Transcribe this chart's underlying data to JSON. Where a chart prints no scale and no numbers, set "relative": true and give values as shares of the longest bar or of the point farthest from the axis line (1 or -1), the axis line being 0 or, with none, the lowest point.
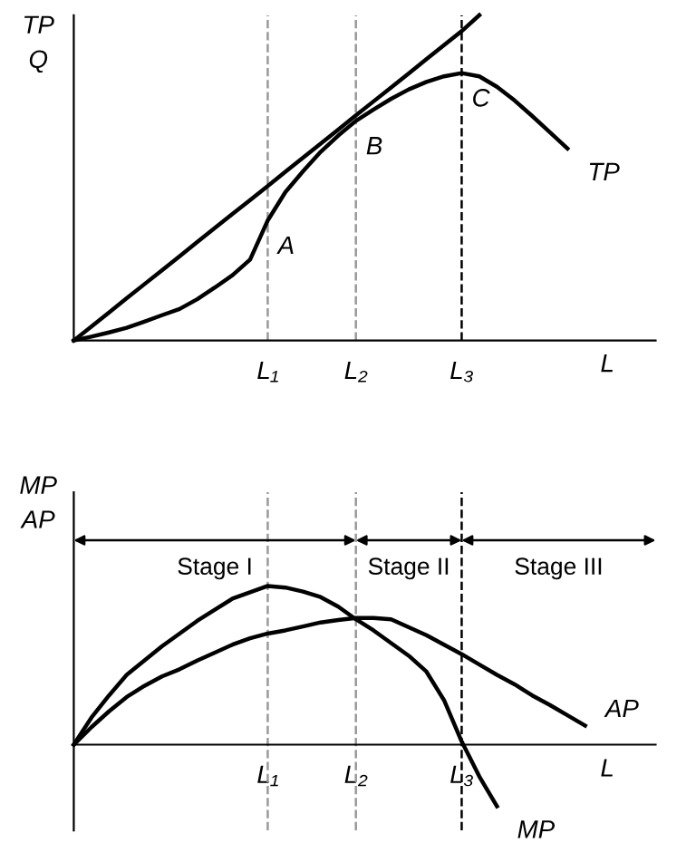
{
  "chart_data": [
    {
      "type": "line",
      "relative": true,
      "ylabel": "TP\nQ",
      "xlabel": "L",
      "categories": [
        null,
        null,
        null,
        null,
        null,
        null,
        null,
        null,
        null,
        null,
        null,
        "L₁",
        null,
        null,
        null,
        null,
        "L₂",
        null,
        null,
        null,
        null,
        null,
        "L₃",
        null,
        null,
        null,
        null,
        null,
        null,
        null,
        null,
        null,
        null,
        null
      ],
      "series": [
        {
          "name": "TP",
          "color": "#000000",
          "values": [
            0,
            0.012,
            0.025,
            0.039,
            0.058,
            0.078,
            0.097,
            0.127,
            0.163,
            0.201,
            0.249,
            0.369,
            0.456,
            0.52,
            0.58,
            0.63,
            0.675,
            0.71,
            0.743,
            0.772,
            0.795,
            0.812,
            0.822,
            0.812,
            0.78,
            0.738,
            0.69,
            0.64,
            0.59,
            null,
            null,
            null,
            null,
            null
          ]
        },
        {
          "color": "#000000",
          "values": [
            0,
            0.043,
            0.086,
            0.13,
            0.173,
            0.216,
            0.259,
            0.303,
            0.346,
            0.389,
            0.432,
            0.475,
            0.519,
            0.562,
            0.605,
            0.648,
            0.692,
            0.735,
            0.778,
            0.821,
            0.865,
            0.908,
            0.951,
            1,
            null,
            null,
            null,
            null,
            null,
            null,
            null,
            null,
            null,
            null
          ]
        }
      ],
      "annotations": [
        {
          "text": "A",
          "x": "L₁",
          "y": 0.369
        },
        {
          "text": "B",
          "x": "L₂",
          "y": 0.675
        },
        {
          "text": "C",
          "x": "L₃",
          "y": 0.822
        }
      ],
      "ref_lines": [
        {
          "axis": "x",
          "value": "L₁",
          "color": "#999999",
          "line_style": "dashed"
        },
        {
          "axis": "x",
          "value": "L₂",
          "color": "#999999",
          "line_style": "dashed"
        },
        {
          "axis": "x",
          "value": "L₃",
          "color": "#000000",
          "line_style": "dashed"
        }
      ],
      "marker": "none",
      "line_style": "solid"
    },
    {
      "type": "line",
      "relative": true,
      "ylabel": "MP\nAP",
      "xlabel": "L",
      "categories": [
        null,
        null,
        null,
        null,
        null,
        null,
        null,
        null,
        null,
        null,
        null,
        "L₁",
        null,
        null,
        null,
        null,
        "L₂",
        null,
        null,
        null,
        null,
        null,
        "L₃",
        null,
        null,
        null,
        null,
        null,
        null,
        null,
        null,
        null,
        null,
        null
      ],
      "series": [
        {
          "name": "MP",
          "color": "#000000",
          "values": [
            0,
            0.17,
            0.31,
            0.44,
            0.53,
            0.62,
            0.7,
            0.78,
            0.85,
            0.92,
            0.96,
            1,
            0.99,
            0.965,
            0.93,
            0.87,
            0.79,
            0.72,
            0.64,
            0.56,
            0.46,
            0.28,
            0.02,
            -0.2,
            -0.388,
            null,
            null,
            null,
            null,
            null,
            null,
            null,
            null,
            null
          ]
        },
        {
          "name": "AP",
          "color": "#000000",
          "values": [
            0,
            0.11,
            0.21,
            0.3,
            0.37,
            0.43,
            0.475,
            0.53,
            0.58,
            0.63,
            0.67,
            0.7,
            0.72,
            0.745,
            0.77,
            0.785,
            0.798,
            0.798,
            0.79,
            0.74,
            0.69,
            0.63,
            0.57,
            0.505,
            0.44,
            0.38,
            0.31,
            0.25,
            0.185,
            0.12,
            null,
            null,
            null,
            null
          ]
        }
      ],
      "annotations": [
        "Stage I",
        "Stage II",
        "Stage III"
      ],
      "ref_lines": [
        {
          "axis": "x",
          "value": "L₁",
          "color": "#999999",
          "line_style": "dashed"
        },
        {
          "axis": "x",
          "value": "L₂",
          "color": "#999999",
          "line_style": "dashed"
        },
        {
          "axis": "x",
          "value": "L₃",
          "color": "#000000",
          "line_style": "dashed"
        }
      ],
      "marker": "none",
      "line_style": "solid"
    }
  ]
}
